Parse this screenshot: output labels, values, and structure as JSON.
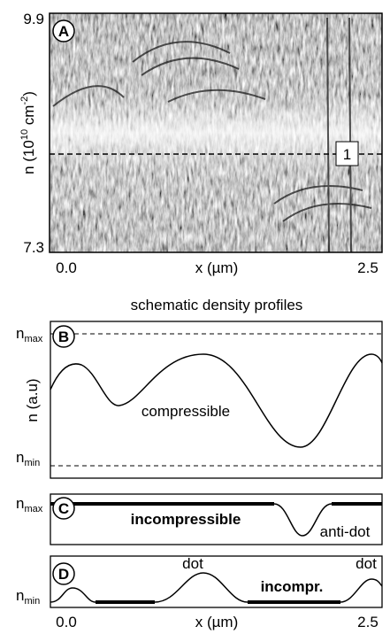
{
  "panel_a": {
    "label": "A",
    "y_max": "9.9",
    "y_min": "7.3",
    "y_axis": {
      "base": "n (10",
      "exp1": "10",
      "mid": " cm",
      "exp2": "-2",
      "end": ")"
    },
    "marker": "1",
    "x_min": "0.0",
    "x_axis": "x (µm)",
    "x_max": "2.5"
  },
  "schematic_title": "schematic density profiles",
  "panel_b": {
    "label": "B",
    "n_max": {
      "base": "n",
      "sub": "max"
    },
    "n_min": {
      "base": "n",
      "sub": "min"
    },
    "y_axis": "n (a.u)",
    "curve_label": "compressible"
  },
  "panel_c": {
    "label": "C",
    "n_max": {
      "base": "n",
      "sub": "max"
    },
    "region_label": "incompressible",
    "dip_label": "anti-dot"
  },
  "panel_d": {
    "label": "D",
    "n_min": {
      "base": "n",
      "sub": "min"
    },
    "peak_labels": [
      "dot",
      "dot"
    ],
    "region_label": "incompr."
  },
  "bottom_axis": {
    "x_min": "0.0",
    "x_axis": "x (µm)",
    "x_max": "2.5"
  }
}
